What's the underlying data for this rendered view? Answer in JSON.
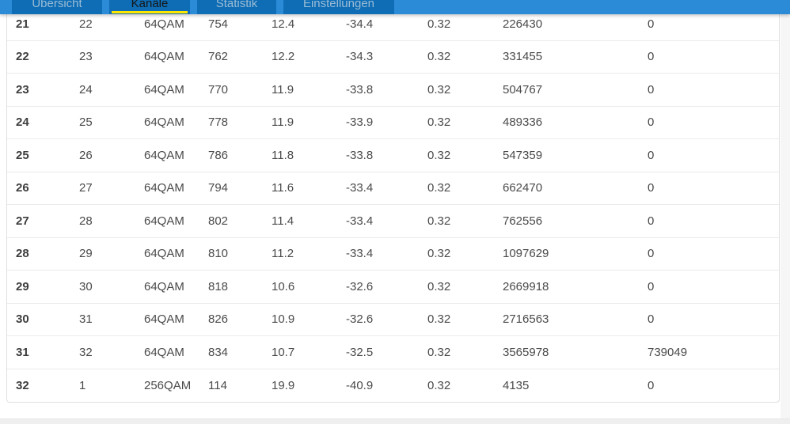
{
  "tab_bar": {
    "tabs": [
      {
        "label": "Übersicht",
        "active": false
      },
      {
        "label": "Kanäle",
        "active": true
      },
      {
        "label": "Statistik",
        "active": false
      },
      {
        "label": "Einstellungen",
        "active": false
      }
    ]
  },
  "table": {
    "rows": [
      [
        "21",
        "22",
        "64QAM",
        "754",
        "12.4",
        "-34.4",
        "0.32",
        "226430",
        "0"
      ],
      [
        "22",
        "23",
        "64QAM",
        "762",
        "12.2",
        "-34.3",
        "0.32",
        "331455",
        "0"
      ],
      [
        "23",
        "24",
        "64QAM",
        "770",
        "11.9",
        "-33.8",
        "0.32",
        "504767",
        "0"
      ],
      [
        "24",
        "25",
        "64QAM",
        "778",
        "11.9",
        "-33.9",
        "0.32",
        "489336",
        "0"
      ],
      [
        "25",
        "26",
        "64QAM",
        "786",
        "11.8",
        "-33.8",
        "0.32",
        "547359",
        "0"
      ],
      [
        "26",
        "27",
        "64QAM",
        "794",
        "11.6",
        "-33.4",
        "0.32",
        "662470",
        "0"
      ],
      [
        "27",
        "28",
        "64QAM",
        "802",
        "11.4",
        "-33.4",
        "0.32",
        "762556",
        "0"
      ],
      [
        "28",
        "29",
        "64QAM",
        "810",
        "11.2",
        "-33.4",
        "0.32",
        "1097629",
        "0"
      ],
      [
        "29",
        "30",
        "64QAM",
        "818",
        "10.6",
        "-32.6",
        "0.32",
        "2669918",
        "0"
      ],
      [
        "30",
        "31",
        "64QAM",
        "826",
        "10.9",
        "-32.6",
        "0.32",
        "2716563",
        "0"
      ],
      [
        "31",
        "32",
        "64QAM",
        "834",
        "10.7",
        "-32.5",
        "0.32",
        "3565978",
        "739049"
      ],
      [
        "32",
        "1",
        "256QAM",
        "114",
        "19.9",
        "-40.9",
        "0.32",
        "4135",
        "0"
      ]
    ]
  },
  "colors": {
    "top_bar": "#2b8bd7",
    "tab_background": "#0e6db5",
    "inactive_tab_text": "#9cbcd5",
    "active_tab_text": "#161616",
    "active_tab_underline": "#ffe600",
    "table_border": "#e0e0e0",
    "row_separator": "#ebebeb",
    "table_text": "#4a4a4a",
    "side_gutter": "#f6f6f6",
    "footer_strip": "#efefef"
  }
}
